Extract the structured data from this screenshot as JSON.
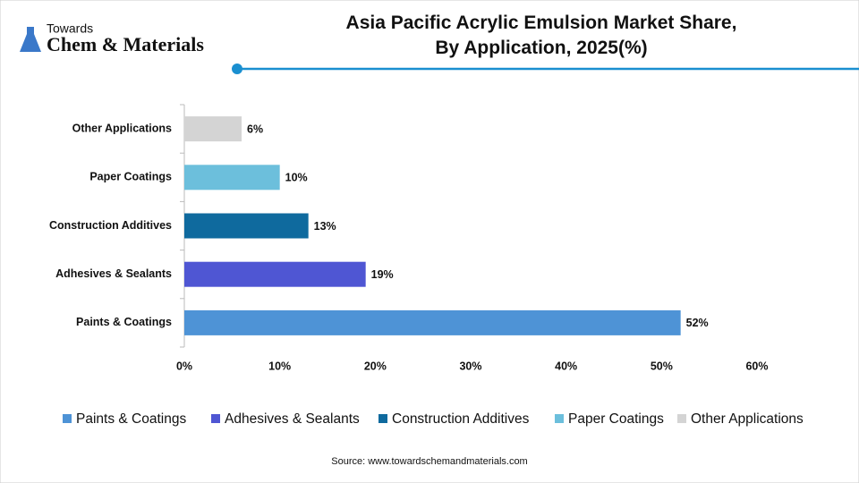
{
  "logo": {
    "line1": "Towards",
    "line2": "Chem & Materials"
  },
  "chart_data": {
    "type": "bar",
    "orientation": "horizontal",
    "title": "Asia Pacific Acrylic Emulsion Market Share,\nBy Application, 2025(%)",
    "categories": [
      "Paints & Coatings",
      "Adhesives & Sealants",
      "Construction Additives",
      "Paper Coatings",
      "Other Applications"
    ],
    "values": [
      52,
      19,
      13,
      10,
      6
    ],
    "value_labels": [
      "52%",
      "19%",
      "13%",
      "10%",
      "6%"
    ],
    "colors": [
      "#4e93d6",
      "#4f56d3",
      "#0f6a9e",
      "#6cbfdc",
      "#d4d4d4"
    ],
    "xlim": [
      0,
      60
    ],
    "xticks": [
      {
        "value": 0,
        "label": "0%"
      },
      {
        "value": 10,
        "label": "10%"
      },
      {
        "value": 20,
        "label": "20%"
      },
      {
        "value": 30,
        "label": "30%"
      },
      {
        "value": 40,
        "label": "40%"
      },
      {
        "value": 50,
        "label": "50%"
      },
      {
        "value": 60,
        "label": "60%"
      }
    ],
    "grid": false,
    "legend": "bottom",
    "source": "Source: www.towardschemandmaterials.com"
  }
}
